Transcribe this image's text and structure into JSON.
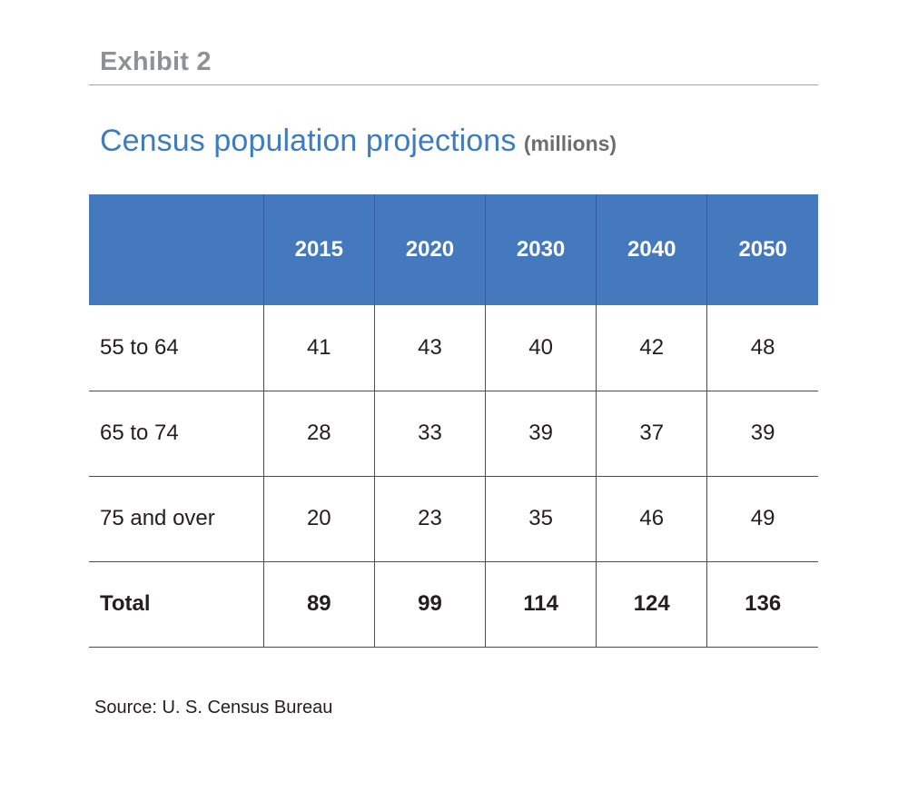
{
  "exhibit_label": "Exhibit 2",
  "title": "Census population projections",
  "unit": "(millions)",
  "source": "Source: U. S. Census Bureau",
  "colors": {
    "header_fill": "#4479bd",
    "title": "#3d7cc0",
    "rule": "#8cc152",
    "exhibit_label": "#8f9194"
  },
  "chart_data": {
    "type": "table",
    "title": "Census population projections",
    "unit": "(millions)",
    "columns": [
      "",
      "2015",
      "2020",
      "2030",
      "2040",
      "2050"
    ],
    "rows": [
      {
        "label": "55 to 64",
        "values": [
          41,
          43,
          40,
          42,
          48
        ]
      },
      {
        "label": "65 to 74",
        "values": [
          28,
          33,
          39,
          37,
          39
        ]
      },
      {
        "label": "75 and over",
        "values": [
          20,
          23,
          35,
          46,
          49
        ]
      },
      {
        "label": "Total",
        "values": [
          89,
          99,
          114,
          124,
          136
        ],
        "bold": true
      }
    ]
  }
}
